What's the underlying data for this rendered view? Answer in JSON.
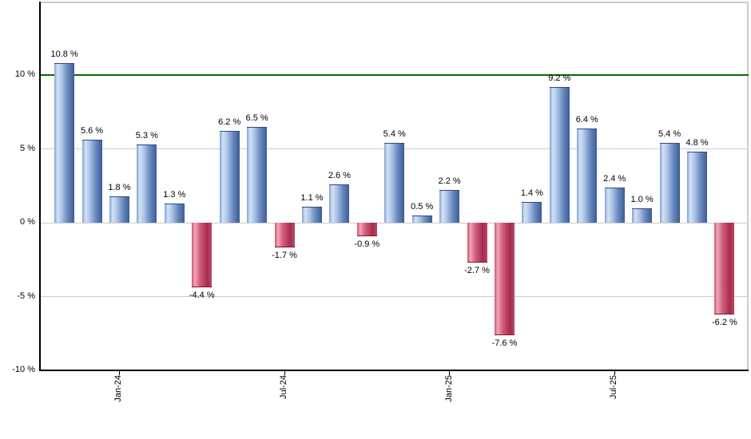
{
  "chart_data": {
    "type": "bar",
    "title": "",
    "description": "Monthly percent returns bar chart; blue bars positive, red bars negative, green reference line at 10 %",
    "values": [
      10.8,
      5.6,
      1.8,
      5.3,
      1.3,
      -4.4,
      6.2,
      6.5,
      -1.7,
      1.1,
      2.6,
      -0.9,
      5.4,
      0.5,
      2.2,
      -2.7,
      -7.6,
      1.4,
      9.2,
      6.4,
      2.4,
      1.0,
      5.4,
      4.8,
      -6.2
    ],
    "bar_labels": [
      "10.8 %",
      "5.6 %",
      "1.8 %",
      "5.3 %",
      "1.3 %",
      "-4.4 %",
      "6.2 %",
      "6.5 %",
      "-1.7 %",
      "1.1 %",
      "2.6 %",
      "-0.9 %",
      "5.4 %",
      "0.5 %",
      "2.2 %",
      "-2.7 %",
      "-7.6 %",
      "1.4 %",
      "9.2 %",
      "6.4 %",
      "2.4 %",
      "1.0 %",
      "5.4 %",
      "4.8 %",
      "-6.2 %"
    ],
    "label_suffix": " %",
    "x_axis": {
      "ticks": [
        {
          "bar_index": 2,
          "label": "Jan-24"
        },
        {
          "bar_index": 8,
          "label": "Jul-24"
        },
        {
          "bar_index": 14,
          "label": "Jan-25"
        },
        {
          "bar_index": 20,
          "label": "Jul-25"
        }
      ],
      "label_rotation_deg": -90
    },
    "y_axis": {
      "ticks": [
        {
          "value": 10,
          "label": "10 %"
        },
        {
          "value": 5,
          "label": "5 %"
        },
        {
          "value": 0,
          "label": "0 %"
        },
        {
          "value": -5,
          "label": "-5 %"
        },
        {
          "value": -10,
          "label": "-10 %"
        }
      ],
      "gridline_values": [
        5,
        0,
        -5
      ],
      "range": [
        -10,
        14.9
      ]
    },
    "reference_line": {
      "value": 10,
      "color": "#006e00"
    },
    "legend": "none",
    "grid": "on",
    "colors": {
      "positive_bar": "#6787bd",
      "negative_bar": "#c23a5c",
      "reference_line": "#006e00",
      "gridline": "#cccccc",
      "axis": "#000000",
      "label_text": "#000000",
      "background": "#ffffff"
    }
  }
}
